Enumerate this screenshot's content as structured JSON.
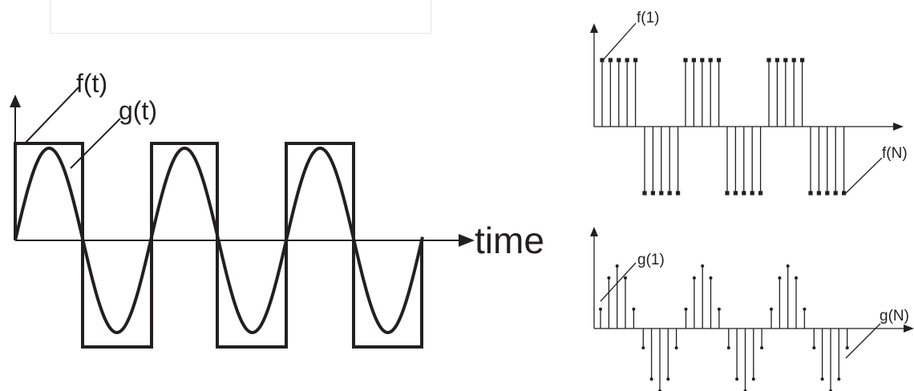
{
  "colors": {
    "ink": "#231f20",
    "background": "#ffffff",
    "frame_border": "#e6e6e6"
  },
  "continuous_plot": {
    "square_wave_label": "f(t)",
    "sine_wave_label": "g(t)",
    "axis_label": "time"
  },
  "sampled_square_plot": {
    "first_sample_label": "f(1)",
    "last_sample_label": "f(N)"
  },
  "sampled_sine_plot": {
    "first_sample_label": "g(1)",
    "last_sample_label": "g(N)"
  }
}
